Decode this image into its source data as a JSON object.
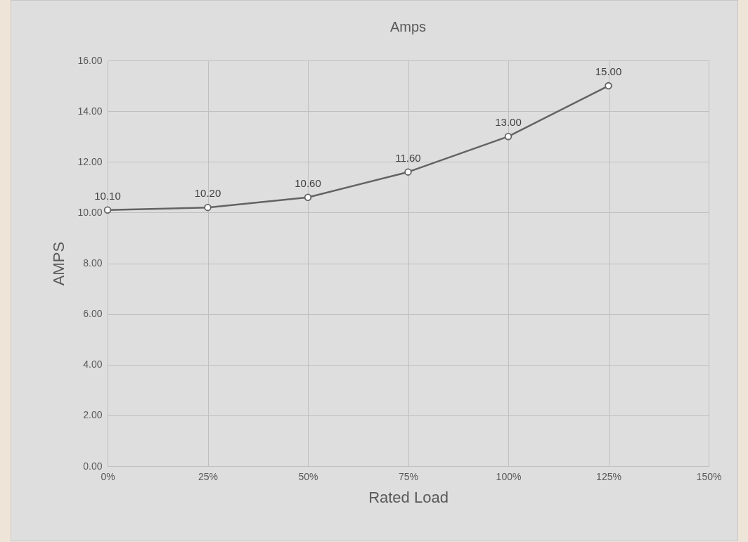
{
  "chart_data": {
    "type": "line",
    "title": "Amps",
    "xlabel": "Rated Load",
    "ylabel": "AMPS",
    "x": [
      0,
      25,
      50,
      75,
      100,
      125
    ],
    "series": [
      {
        "color": "#636363",
        "values": [
          10.1,
          10.2,
          10.6,
          11.6,
          13.0,
          15.0
        ],
        "value_labels": [
          "10.10",
          "10.20",
          "10.60",
          "11.60",
          "13.00",
          "15.00"
        ]
      }
    ],
    "xlim": [
      0,
      150
    ],
    "xticks": [
      {
        "value": 0,
        "label": "0%"
      },
      {
        "value": 25,
        "label": "25%"
      },
      {
        "value": 50,
        "label": "50%"
      },
      {
        "value": 75,
        "label": "75%"
      },
      {
        "value": 100,
        "label": "100%"
      },
      {
        "value": 125,
        "label": "125%"
      },
      {
        "value": 150,
        "label": "150%"
      }
    ],
    "ylim": [
      0,
      16
    ],
    "yticks": [
      {
        "value": 0,
        "label": "0.00"
      },
      {
        "value": 2,
        "label": "2.00"
      },
      {
        "value": 4,
        "label": "4.00"
      },
      {
        "value": 6,
        "label": "6.00"
      },
      {
        "value": 8,
        "label": "8.00"
      },
      {
        "value": 10,
        "label": "10.00"
      },
      {
        "value": 12,
        "label": "12.00"
      },
      {
        "value": 14,
        "label": "14.00"
      },
      {
        "value": 16,
        "label": "16.00"
      }
    ],
    "grid": true,
    "marker": "circle",
    "line_style": "solid"
  }
}
